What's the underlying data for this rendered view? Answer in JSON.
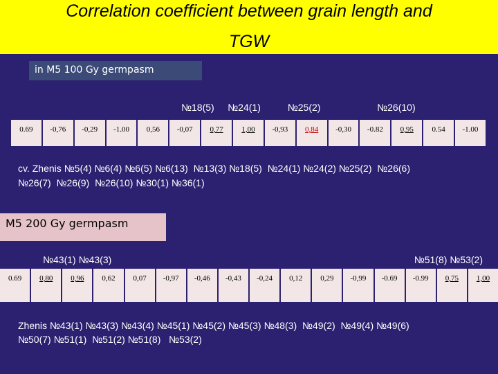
{
  "header": {
    "title_line1": "Correlation coefficient between grain length and",
    "title_line2": "TGW"
  },
  "section1": {
    "label": "in M5 100 Gy germpasm",
    "columns_note": "№18(5)     №24(1)          №25(2)                     №26(10)",
    "cells": [
      {
        "text": "0.69"
      },
      {
        "text": "-0,76"
      },
      {
        "text": "-0,29"
      },
      {
        "text": "-1.00"
      },
      {
        "text": "0,56"
      },
      {
        "text": "-0,07"
      },
      {
        "text": "0,77",
        "underline": true
      },
      {
        "text": "1,00",
        "underline": true
      },
      {
        "text": "-0,93"
      },
      {
        "text": "0,84",
        "underline": true,
        "color": "#c00000"
      },
      {
        "text": "-0,30"
      },
      {
        "text": "-0.82"
      },
      {
        "text": "0,95",
        "underline": true
      },
      {
        "text": "0.54"
      },
      {
        "text": "-1.00"
      }
    ],
    "varieties_line1": "cv. Zhenis №5(4) №6(4) №6(5) №6(13)  №13(3) №18(5)  №24(1) №24(2) №25(2)  №26(6)",
    "varieties_line2": "№26(7)  №26(9)  №26(10) №30(1) №36(1)"
  },
  "section2": {
    "label": "M5 200 Gy germpasm",
    "left_note": "№43(1) №43(3)",
    "right_note": "№51(8) №53(2)",
    "cells": [
      {
        "text": "0.69"
      },
      {
        "text": "0,80",
        "underline": true
      },
      {
        "text": "0,96",
        "underline": true
      },
      {
        "text": "0,62"
      },
      {
        "text": "0,07"
      },
      {
        "text": "-0,97"
      },
      {
        "text": "-0,46"
      },
      {
        "text": "-0,43"
      },
      {
        "text": "-0,24"
      },
      {
        "text": "0,12"
      },
      {
        "text": "0,29"
      },
      {
        "text": "-0,99"
      },
      {
        "text": "-0.69"
      },
      {
        "text": "-0.99"
      },
      {
        "text": "0,75",
        "underline": true
      },
      {
        "text": "1,00",
        "underline": true
      }
    ],
    "varieties_line1": "Zhenis №43(1) №43(3) №43(4) №45(1) №45(2) №45(3) №48(3)  №49(2)  №49(4) №49(6)",
    "varieties_line2": "№50(7) №51(1)  №51(2) №51(8)   №53(2)"
  }
}
